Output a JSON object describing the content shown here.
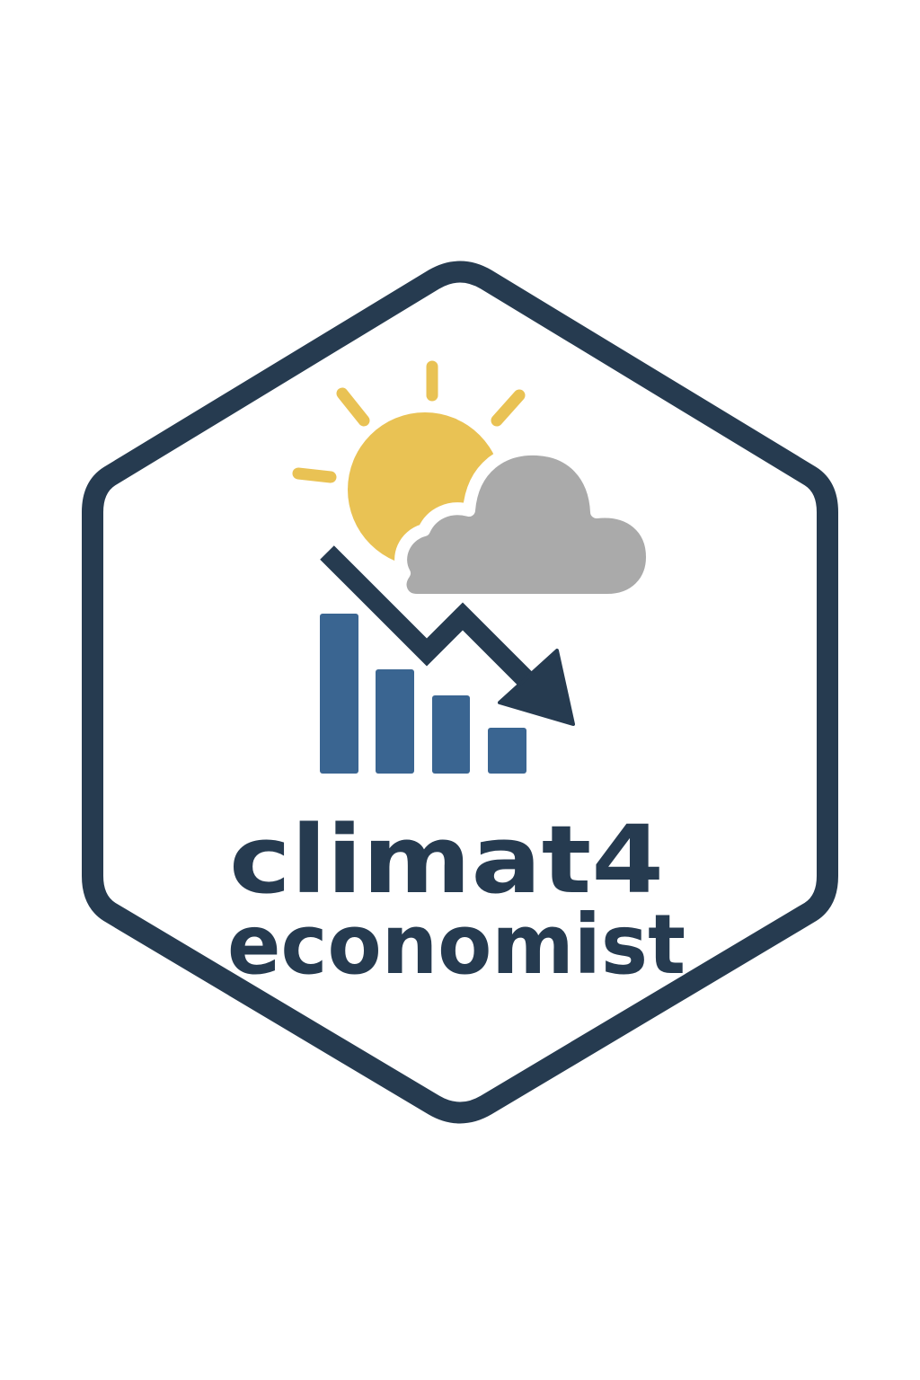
{
  "logo": {
    "line1": "climat4",
    "line2": "economist",
    "icons": [
      "sun-icon",
      "cloud-icon",
      "bar-chart-icon",
      "trend-down-arrow-icon"
    ],
    "colors": {
      "outline": "#263b50",
      "sun": "#e9c254",
      "cloud": "#aaaaaa",
      "bars": "#3a6591",
      "arrow": "#263b50",
      "background": "#ffffff"
    }
  }
}
